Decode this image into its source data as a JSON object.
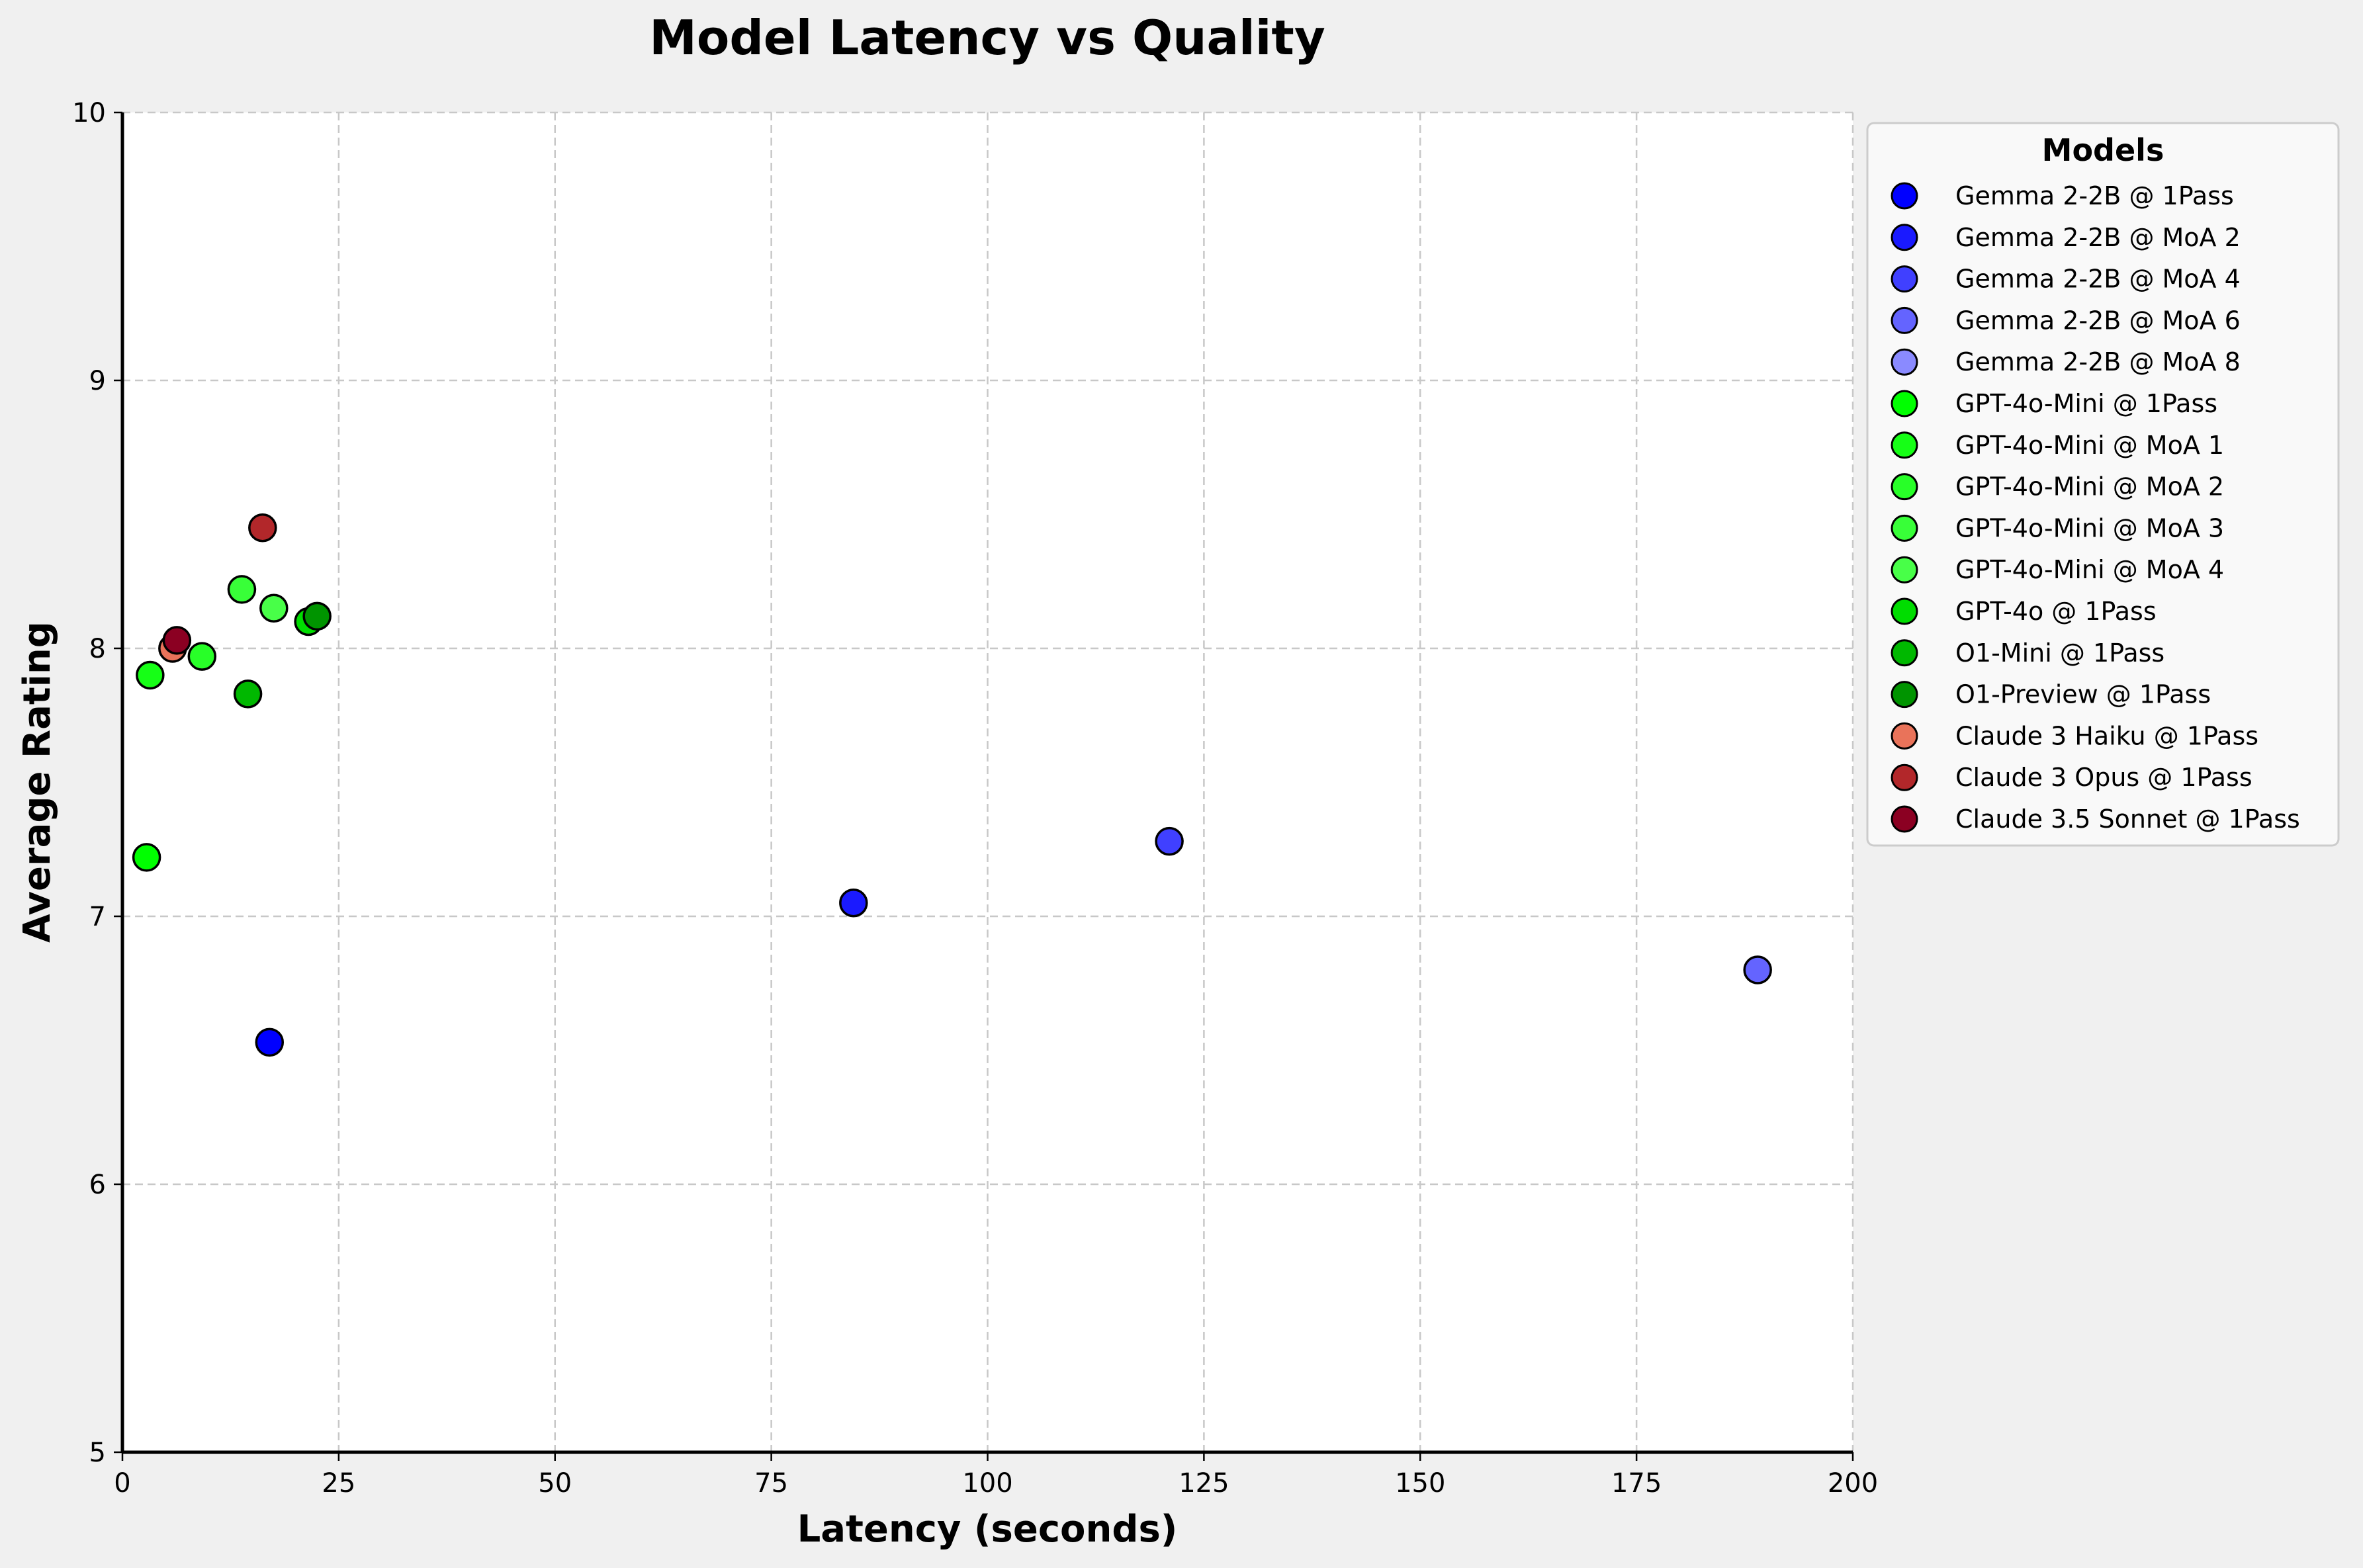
{
  "chart_data": {
    "type": "scatter",
    "title": "Model Latency vs Quality",
    "xlabel": "Latency (seconds)",
    "ylabel": "Average Rating",
    "xlim": [
      0,
      200
    ],
    "ylim": [
      5,
      10
    ],
    "xticks": [
      0,
      25,
      50,
      75,
      100,
      125,
      150,
      175,
      200
    ],
    "yticks": [
      5,
      6,
      7,
      8,
      9,
      10
    ],
    "grid": true,
    "legend_title": "Models",
    "legend_placement": "outside-right-top",
    "series": [
      {
        "name": "Gemma 2-2B @ 1Pass",
        "color": "#0000ff",
        "x": 17.0,
        "y": 6.53
      },
      {
        "name": "Gemma 2-2B @ MoA 2",
        "color": "#1a1aff",
        "x": 84.5,
        "y": 7.05
      },
      {
        "name": "Gemma 2-2B @ MoA 4",
        "color": "#4040ff",
        "x": 121.0,
        "y": 7.28
      },
      {
        "name": "Gemma 2-2B @ MoA 6",
        "color": "#6464ff",
        "x": 189.0,
        "y": 6.8
      },
      {
        "name": "Gemma 2-2B @ MoA 8",
        "color": "#8a8aff",
        "x": null,
        "y": null
      },
      {
        "name": "GPT-4o-Mini @ 1Pass",
        "color": "#00ff00",
        "x": 2.8,
        "y": 7.22
      },
      {
        "name": "GPT-4o-Mini @ MoA 1",
        "color": "#16ff16",
        "x": 3.2,
        "y": 7.9
      },
      {
        "name": "GPT-4o-Mini @ MoA 2",
        "color": "#28ff28",
        "x": 9.2,
        "y": 7.97
      },
      {
        "name": "GPT-4o-Mini @ MoA 3",
        "color": "#38ff38",
        "x": 13.8,
        "y": 8.22
      },
      {
        "name": "GPT-4o-Mini @ MoA 4",
        "color": "#48ff48",
        "x": 17.5,
        "y": 8.15
      },
      {
        "name": "GPT-4o @ 1Pass",
        "color": "#00dd00",
        "x": 21.5,
        "y": 8.1
      },
      {
        "name": "O1-Mini @ 1Pass",
        "color": "#00b800",
        "x": 14.5,
        "y": 7.83
      },
      {
        "name": "O1-Preview @ 1Pass",
        "color": "#009400",
        "x": 22.5,
        "y": 8.12
      },
      {
        "name": "Claude 3 Haiku @ 1Pass",
        "color": "#e9735a",
        "x": 5.8,
        "y": 8.0
      },
      {
        "name": "Claude 3 Opus @ 1Pass",
        "color": "#b2272a",
        "x": 16.2,
        "y": 8.45
      },
      {
        "name": "Claude 3.5 Sonnet @ 1Pass",
        "color": "#8b0022",
        "x": 6.3,
        "y": 8.03
      }
    ]
  }
}
